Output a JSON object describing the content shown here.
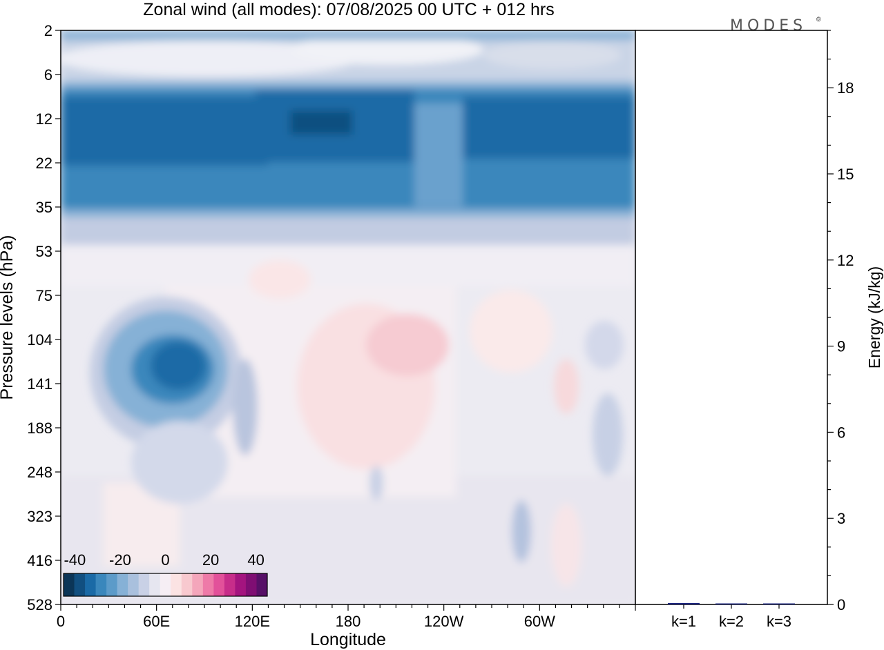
{
  "header": {
    "title": "Zonal wind (all modes):  07/08/2025  00 UTC  + 012 hrs",
    "logo": "MODES",
    "logo_mark": "©"
  },
  "chart_data": [
    {
      "type": "heatmap",
      "xlabel": "Longitude",
      "ylabel": "Pressure levels (hPa)",
      "x_ticks": [
        "0",
        "60E",
        "120E",
        "180",
        "120W",
        "60W"
      ],
      "y_ticks": [
        "2",
        "6",
        "12",
        "22",
        "35",
        "53",
        "75",
        "104",
        "141",
        "188",
        "248",
        "323",
        "416",
        "528"
      ],
      "xlim_degrees_east": [
        0,
        360
      ],
      "y_scale": "model levels (non-uniform, top 2 hPa to bottom 528 hPa)",
      "colorbar": {
        "tick_labels": [
          "-40",
          "-20",
          "0",
          "20",
          "40"
        ],
        "range": [
          -45,
          45
        ],
        "step": 5,
        "placement": "lower-left inside plot",
        "colors": [
          "#0b3557",
          "#114f80",
          "#1a6aa6",
          "#3a87bc",
          "#5c9bc9",
          "#86b1d6",
          "#a9c0dd",
          "#c9d1e6",
          "#e6e6f0",
          "#f6eef4",
          "#fbe3e3",
          "#f8c9cf",
          "#f4a6bb",
          "#ee7aa8",
          "#e2519a",
          "#c72d8a",
          "#a4147f",
          "#7f0e73",
          "#571067"
        ]
      },
      "features": [
        {
          "description_level": "2-6 hPa",
          "value_approx": -10
        },
        {
          "description_level": "10-35 hPa",
          "value_approx": -30
        },
        {
          "description_level": "100-190 hPa, 40E-110E",
          "value_approx": -30
        },
        {
          "description_level": "90-250 hPa, 150E-150W",
          "value_approx": 10
        }
      ]
    },
    {
      "type": "bar",
      "categories": [
        "k=1",
        "k=2",
        "k=3"
      ],
      "values": [
        0.05,
        0.01,
        0.01
      ],
      "ylabel": "Energy (kJ/kg)",
      "ylim": [
        0,
        20
      ],
      "y_ticks": [
        "0",
        "3",
        "6",
        "9",
        "12",
        "15",
        "18"
      ],
      "bar_color": "#1a237e"
    }
  ]
}
